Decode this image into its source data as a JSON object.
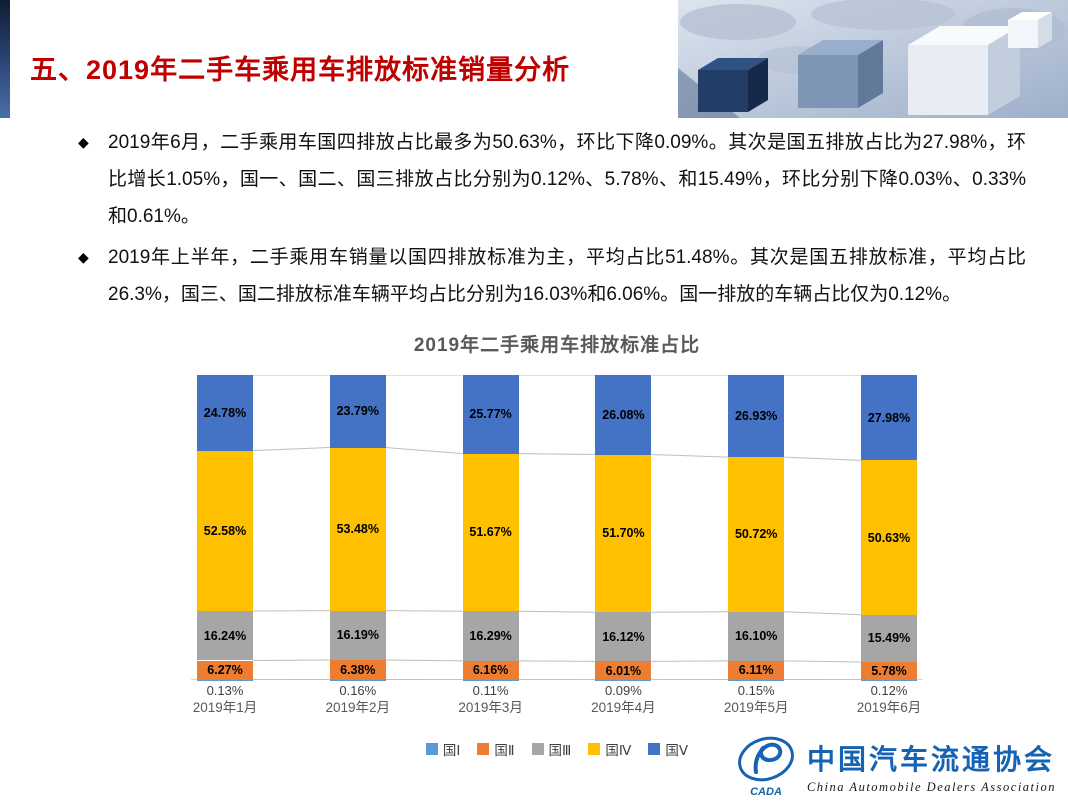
{
  "slide": {
    "title": "五、2019年二手车乘用车排放标准销量分析",
    "bullet_marker": "◆",
    "bullets": [
      "2019年6月，二手乘用车国四排放占比最多为50.63%，环比下降0.09%。其次是国五排放占比为27.98%，环比增长1.05%，国一、国二、国三排放占比分别为0.12%、5.78%、和15.49%，环比分别下降0.03%、0.33%和0.61%。",
      "2019年上半年，二手乘用车销量以国四排放标准为主，平均占比51.48%。其次是国五排放标准，平均占比26.3%，国三、国二排放标准车辆平均占比分别为16.03%和6.06%。国一排放的车辆占比仅为0.12%。"
    ]
  },
  "chart_data": {
    "type": "bar",
    "variant": "100%-stacked-column-with-series-lines",
    "title": "2019年二手乘用车排放标准占比",
    "categories": [
      "2019年1月",
      "2019年2月",
      "2019年3月",
      "2019年4月",
      "2019年5月",
      "2019年6月"
    ],
    "series": [
      {
        "name": "国Ⅰ",
        "color": "#5B9BD5",
        "label_position": "below",
        "values": [
          0.13,
          0.16,
          0.11,
          0.09,
          0.15,
          0.12
        ],
        "labels": [
          "0.13%",
          "0.16%",
          "0.11%",
          "0.09%",
          "0.15%",
          "0.12%"
        ]
      },
      {
        "name": "国Ⅱ",
        "color": "#ED7D31",
        "label_position": "inside",
        "values": [
          6.27,
          6.38,
          6.16,
          6.01,
          6.11,
          5.78
        ],
        "labels": [
          "6.27%",
          "6.38%",
          "6.16%",
          "6.01%",
          "6.11%",
          "5.78%"
        ]
      },
      {
        "name": "国Ⅲ",
        "color": "#A6A6A6",
        "label_position": "inside",
        "values": [
          16.24,
          16.19,
          16.29,
          16.12,
          16.1,
          15.49
        ],
        "labels": [
          "16.24%",
          "16.19%",
          "16.29%",
          "16.12%",
          "16.10%",
          "15.49%"
        ]
      },
      {
        "name": "国Ⅳ",
        "color": "#FFC000",
        "label_position": "inside",
        "values": [
          52.58,
          53.48,
          51.67,
          51.7,
          50.72,
          50.63
        ],
        "labels": [
          "52.58%",
          "53.48%",
          "51.67%",
          "51.70%",
          "50.72%",
          "50.63%"
        ]
      },
      {
        "name": "国Ⅴ",
        "color": "#4472C4",
        "label_position": "inside",
        "values": [
          24.78,
          23.79,
          25.77,
          26.08,
          26.93,
          27.98
        ],
        "labels": [
          "24.78%",
          "23.79%",
          "25.77%",
          "26.08%",
          "26.93%",
          "27.98%"
        ]
      }
    ],
    "ylim": [
      0,
      100
    ],
    "legend_position": "bottom",
    "grid": false,
    "series_connector_lines": true
  },
  "footer": {
    "logo_abbr": "CADA",
    "logo_text_cn": "中国汽车流通协会",
    "logo_text_en": "China Automobile Dealers Association"
  },
  "theme": {
    "title_color": "#C00000",
    "chart_title_color": "#595959",
    "segment_label_color": "#000000",
    "axis_text_color": "#595959",
    "connector_line_color": "#BFBFBF",
    "logo_blue": "#1563B2",
    "banner_blue_dark": "#223D66",
    "banner_blue_light": "#DDE4EE"
  }
}
